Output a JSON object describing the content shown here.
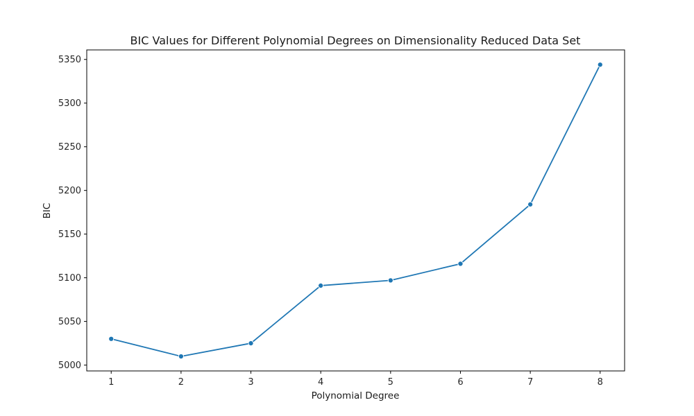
{
  "chart_data": {
    "type": "line",
    "title": "BIC Values for Different Polynomial Degrees on Dimensionality Reduced Data Set",
    "xlabel": "Polynomial Degree",
    "ylabel": "BIC",
    "x": [
      1,
      2,
      3,
      4,
      5,
      6,
      7,
      8
    ],
    "y": [
      5030,
      5010,
      5025,
      5091,
      5097,
      5116,
      5184,
      5344
    ],
    "xticks": [
      "1",
      "2",
      "3",
      "4",
      "5",
      "6",
      "7",
      "8"
    ],
    "yticks": [
      "5000",
      "5050",
      "5100",
      "5150",
      "5200",
      "5250",
      "5300",
      "5350"
    ],
    "xlim": [
      0.65,
      8.35
    ],
    "ylim": [
      4993.3,
      5360.9
    ],
    "grid": false,
    "line_color": "#1f77b4",
    "marker": "circle"
  }
}
